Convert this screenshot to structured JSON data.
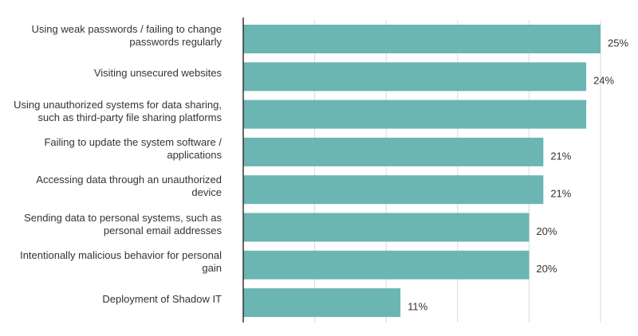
{
  "chart_data": {
    "type": "bar",
    "orientation": "horizontal",
    "categories": [
      "Using weak passwords / failing to change passwords regularly",
      "Visiting unsecured websites",
      "Using unauthorized systems for data sharing, such as third-party file sharing platforms",
      "Failing to update the system software / applications",
      "Accessing data through an unauthorized device",
      "Sending data to personal systems, such as personal email addresses",
      "Intentionally malicious behavior for personal gain",
      "Deployment of Shadow IT"
    ],
    "values": [
      25,
      24,
      24,
      21,
      21,
      20,
      20,
      11
    ],
    "value_labels": [
      "25%",
      "24%",
      null,
      "21%",
      "21%",
      "20%",
      "20%",
      "11%"
    ],
    "color": "#6bb5b3",
    "xlim": [
      0,
      25
    ],
    "xticks": [
      0,
      5,
      10,
      15,
      20,
      25
    ],
    "grid": true
  }
}
